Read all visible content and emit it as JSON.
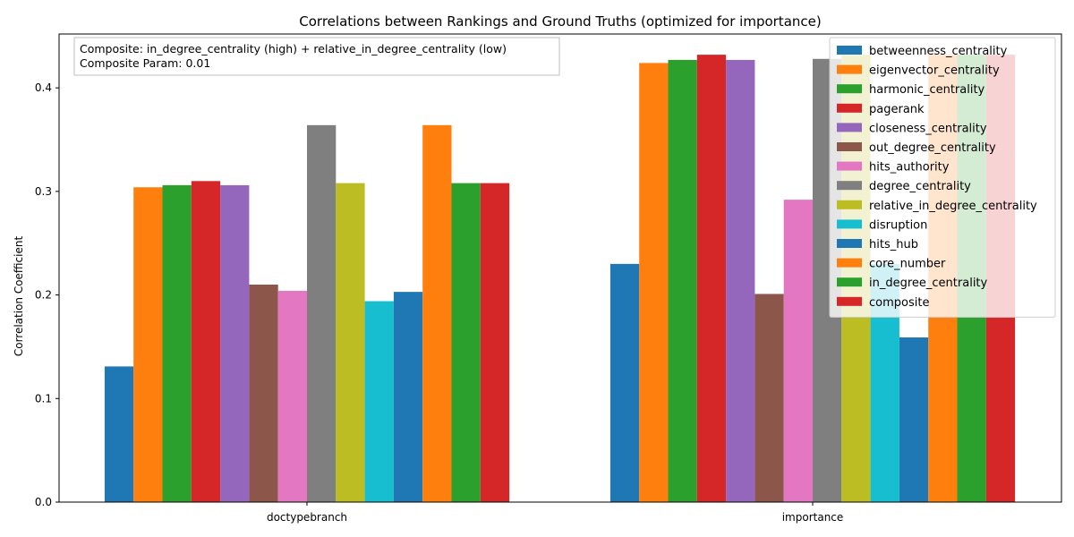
{
  "chart_data": {
    "type": "bar",
    "title": "Correlations between Rankings and Ground Truths (optimized for importance)",
    "xlabel": "",
    "ylabel": "Correlation Coefficient",
    "ylim": [
      0,
      0.452
    ],
    "yticks": [
      0.0,
      0.1,
      0.2,
      0.3,
      0.4
    ],
    "ytick_labels": [
      "0.0",
      "0.1",
      "0.2",
      "0.3",
      "0.4"
    ],
    "categories": [
      "doctypebranch",
      "importance"
    ],
    "grid": false,
    "legend_position": "top-right",
    "annotation": {
      "line1": "Composite: in_degree_centrality (high) + relative_in_degree_centrality (low)",
      "line2": "Composite Param: 0.01"
    },
    "series": [
      {
        "name": "betweenness_centrality",
        "color": "#1f77b4",
        "values": [
          0.131,
          0.23
        ]
      },
      {
        "name": "eigenvector_centrality",
        "color": "#ff7f0e",
        "values": [
          0.304,
          0.424
        ]
      },
      {
        "name": "harmonic_centrality",
        "color": "#2ca02c",
        "values": [
          0.306,
          0.427
        ]
      },
      {
        "name": "pagerank",
        "color": "#d62728",
        "values": [
          0.31,
          0.432
        ]
      },
      {
        "name": "closeness_centrality",
        "color": "#9467bd",
        "values": [
          0.306,
          0.427
        ]
      },
      {
        "name": "out_degree_centrality",
        "color": "#8c564b",
        "values": [
          0.21,
          0.201
        ]
      },
      {
        "name": "hits_authority",
        "color": "#e377c2",
        "values": [
          0.204,
          0.292
        ]
      },
      {
        "name": "degree_centrality",
        "color": "#7f7f7f",
        "values": [
          0.364,
          0.428
        ]
      },
      {
        "name": "relative_in_degree_centrality",
        "color": "#bcbd22",
        "values": [
          0.308,
          0.432
        ]
      },
      {
        "name": "disruption",
        "color": "#17becf",
        "values": [
          0.194,
          0.23
        ]
      },
      {
        "name": "hits_hub",
        "color": "#1f77b4",
        "values": [
          0.203,
          0.159
        ]
      },
      {
        "name": "core_number",
        "color": "#ff7f0e",
        "values": [
          0.364,
          0.432
        ]
      },
      {
        "name": "in_degree_centrality",
        "color": "#2ca02c",
        "values": [
          0.308,
          0.432
        ]
      },
      {
        "name": "composite",
        "color": "#d62728",
        "values": [
          0.308,
          0.432
        ]
      }
    ]
  }
}
